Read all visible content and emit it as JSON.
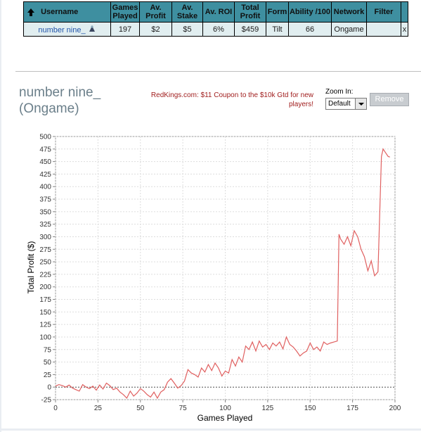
{
  "table": {
    "headers": {
      "username": "Username",
      "games_played": [
        "Games",
        "Played"
      ],
      "av_profit": [
        "Av.",
        "Profit"
      ],
      "av_stake": [
        "Av.",
        "Stake"
      ],
      "av_roi": "Av. ROI",
      "total_profit": [
        "Total",
        "Profit"
      ],
      "form": "Form",
      "ability": "Ability /100",
      "network": "Network",
      "filter": "Filter"
    },
    "row": {
      "username": "number nine_",
      "games_played": "197",
      "av_profit": "$2",
      "av_stake": "$5",
      "av_roi": "6%",
      "total_profit": "$459",
      "form": "Tilt",
      "ability": "66",
      "network": "Ongame",
      "filter": "",
      "remove": "x"
    }
  },
  "player": {
    "title_line1": "number nine_",
    "title_line2": "(Ongame)"
  },
  "coupon": "RedKings.com: $11 Coupon to the $10k Gtd for new players!",
  "zoom": {
    "label": "Zoom In:",
    "selected": "Default"
  },
  "remove_button": "Remove",
  "colors": {
    "header": "#3e8fa0",
    "row": "#e1eef0",
    "line": "#e06060",
    "accent_red": "#b01c1c"
  },
  "chart_data": {
    "type": "line",
    "xlabel": "Games Played",
    "ylabel": "Total Profit ($)",
    "xlim": [
      0,
      200
    ],
    "ylim": [
      -25,
      500
    ],
    "xticks": [
      0,
      25,
      50,
      75,
      100,
      125,
      150,
      175,
      200
    ],
    "yticks": [
      -25,
      0,
      25,
      50,
      75,
      100,
      125,
      150,
      175,
      200,
      225,
      250,
      275,
      300,
      325,
      350,
      375,
      400,
      425,
      450,
      475,
      500
    ],
    "grid": true,
    "zero_line": true,
    "series": [
      {
        "color": "#e06060",
        "x": [
          0,
          2,
          4,
          6,
          8,
          10,
          12,
          14,
          16,
          18,
          20,
          22,
          24,
          26,
          28,
          30,
          32,
          34,
          36,
          38,
          40,
          42,
          44,
          46,
          48,
          50,
          52,
          54,
          56,
          58,
          60,
          62,
          64,
          66,
          68,
          70,
          72,
          74,
          76,
          78,
          80,
          82,
          84,
          86,
          88,
          90,
          92,
          94,
          96,
          98,
          100,
          102,
          104,
          106,
          108,
          110,
          112,
          114,
          116,
          118,
          120,
          122,
          124,
          126,
          128,
          130,
          132,
          134,
          136,
          138,
          140,
          142,
          144,
          146,
          148,
          150,
          152,
          154,
          156,
          158,
          160,
          162,
          164,
          166,
          167,
          168,
          170,
          172,
          174,
          176,
          178,
          180,
          182,
          184,
          186,
          188,
          190,
          192,
          193,
          194,
          196,
          197
        ],
        "y": [
          2,
          5,
          3,
          0,
          4,
          -2,
          -5,
          -8,
          5,
          0,
          -3,
          2,
          -6,
          4,
          -4,
          8,
          3,
          -5,
          -2,
          -10,
          -15,
          -22,
          -8,
          -18,
          -12,
          -3,
          -8,
          -15,
          -20,
          -10,
          -22,
          -10,
          -5,
          10,
          17,
          8,
          -2,
          3,
          12,
          35,
          28,
          25,
          20,
          38,
          30,
          45,
          33,
          48,
          38,
          22,
          32,
          28,
          55,
          42,
          60,
          50,
          82,
          75,
          90,
          72,
          92,
          80,
          85,
          75,
          88,
          82,
          90,
          76,
          100,
          85,
          80,
          72,
          62,
          68,
          72,
          88,
          75,
          80,
          72,
          90,
          85,
          88,
          90,
          92,
          305,
          295,
          285,
          300,
          282,
          312,
          300,
          275,
          260,
          232,
          252,
          222,
          230,
          460,
          475,
          470,
          460,
          459
        ]
      }
    ]
  }
}
